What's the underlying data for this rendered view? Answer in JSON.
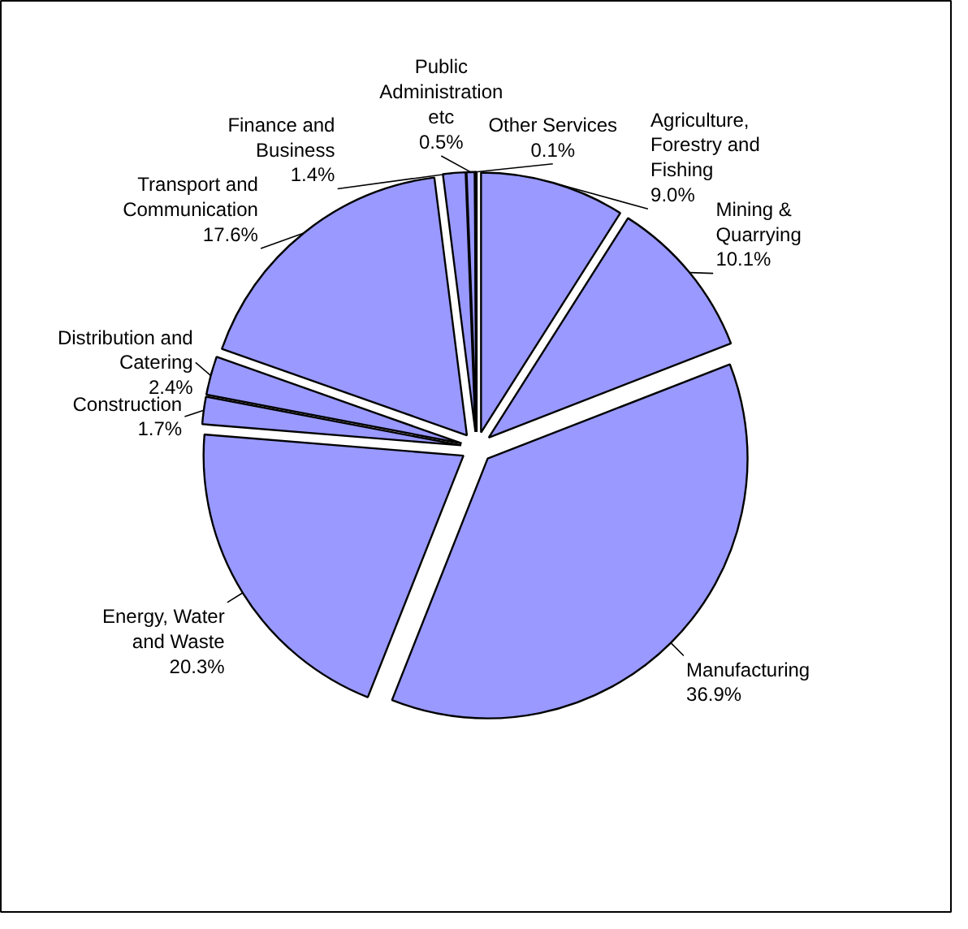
{
  "chart_data": {
    "type": "pie",
    "categories": [
      "Agriculture,\nForestry and\nFishing",
      "Mining &\nQuarrying",
      "Manufacturing",
      "Energy, Water\nand Waste",
      "Construction",
      "Distribution and\nCatering",
      "Transport and\nCommunication",
      "Finance and\nBusiness",
      "Public\nAdministration\netc",
      "Other Services"
    ],
    "values": [
      9.0,
      10.1,
      36.9,
      20.3,
      1.7,
      2.4,
      17.6,
      1.4,
      0.5,
      0.1
    ],
    "color": "#9999ff",
    "value_labels": [
      "9.0%",
      "10.1%",
      "36.9%",
      "20.3%",
      "1.7%",
      "2.4%",
      "17.6%",
      "1.4%",
      "0.5%",
      "0.1%"
    ]
  }
}
